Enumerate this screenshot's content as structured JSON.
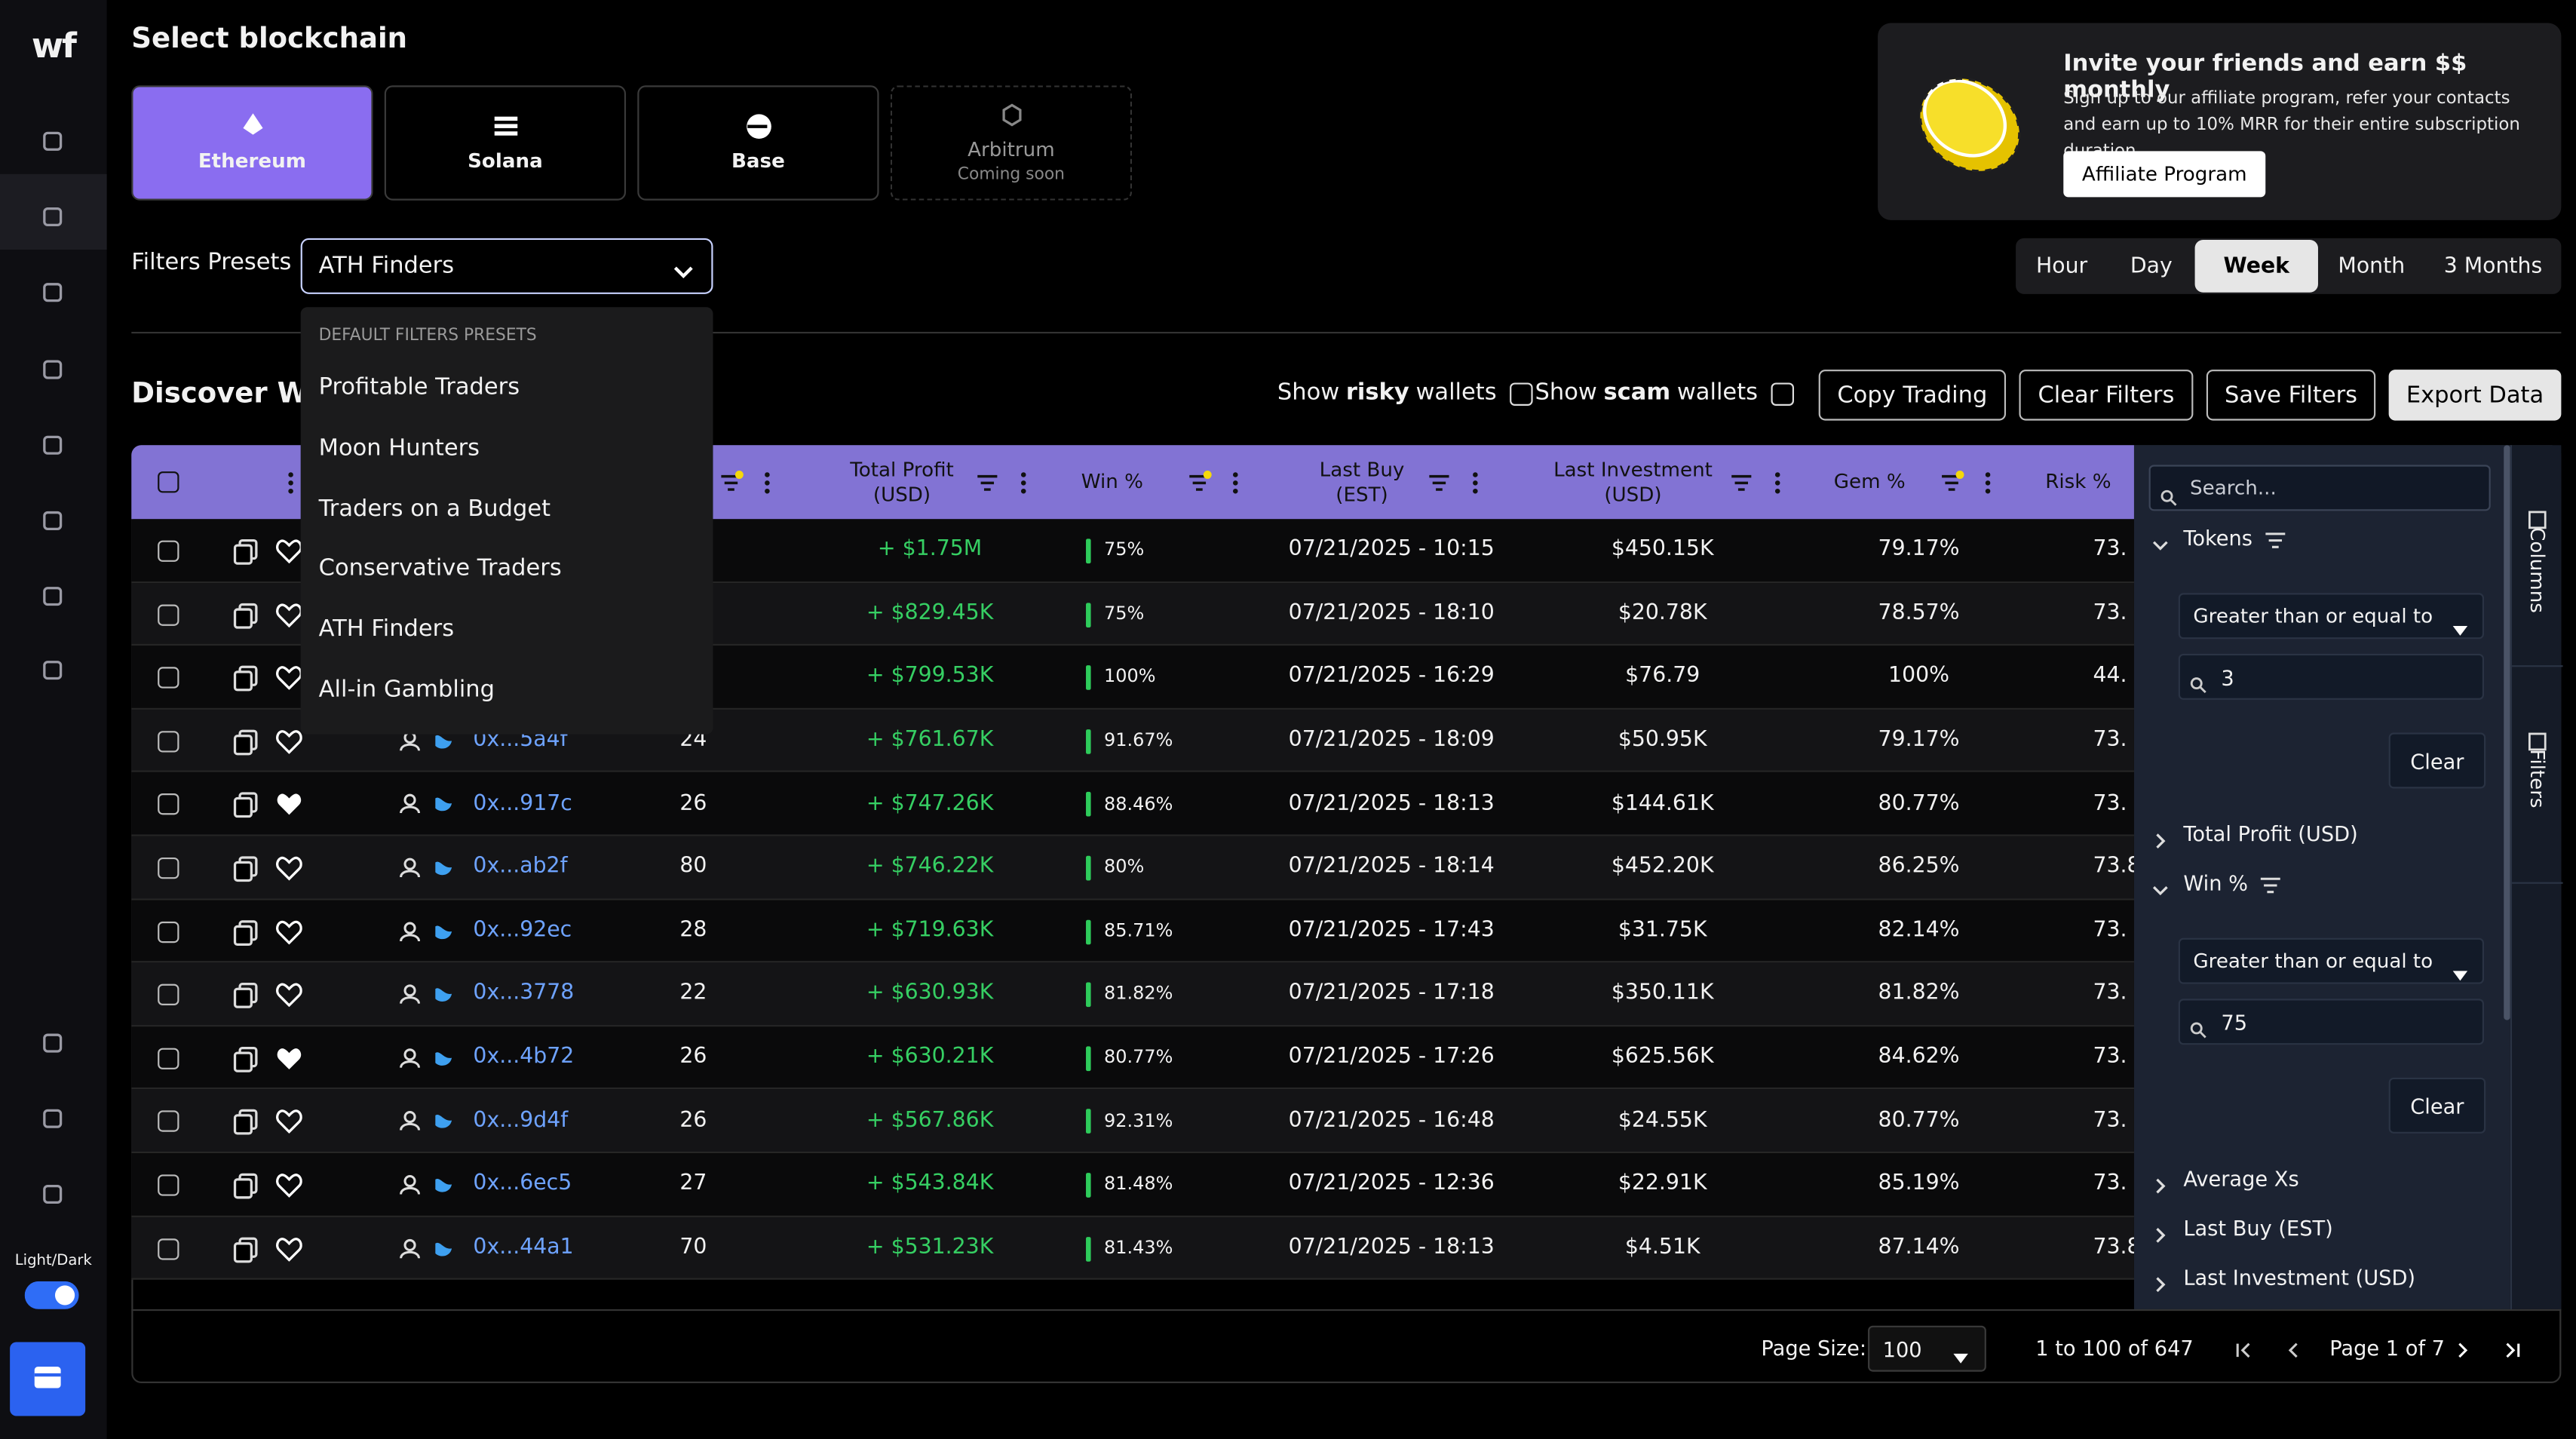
{
  "sidebar": {
    "logo": "wf",
    "theme_label": "Light/Dark"
  },
  "header": {
    "title": "Select blockchain"
  },
  "chains": [
    {
      "name": "Ethereum",
      "active": true
    },
    {
      "name": "Solana",
      "active": false
    },
    {
      "name": "Base",
      "active": false
    },
    {
      "name": "Arbitrum",
      "note": "Coming soon",
      "active": false
    }
  ],
  "affiliate": {
    "title": "Invite your friends and earn $$ monthly",
    "text": "Sign up to our affiliate program, refer your contacts and earn up to 10% MRR for their entire subscription duration.",
    "button": "Affiliate Program"
  },
  "presets": {
    "label": "Filters Presets",
    "selected": "ATH Finders",
    "group": "DEFAULT FILTERS PRESETS",
    "items": [
      "Profitable Traders",
      "Moon Hunters",
      "Traders on a Budget",
      "Conservative Traders",
      "ATH Finders",
      "All-in Gambling"
    ]
  },
  "timeframes": {
    "options": [
      "Hour",
      "Day",
      "Week",
      "Month",
      "3 Months"
    ],
    "active": 2
  },
  "discover": {
    "title": "Discover Wallets",
    "toggles": [
      {
        "prefix": "Show",
        "bold": "risky",
        "suffix": "wallets"
      },
      {
        "prefix": "Show",
        "bold": "scam",
        "suffix": "wallets"
      }
    ],
    "buttons": [
      "Copy Trading",
      "Clear Filters",
      "Save Filters",
      "Export Data"
    ]
  },
  "table": {
    "columns": [
      "Total Profit (USD)",
      "Win %",
      "Last Buy (EST)",
      "Last Investment (USD)",
      "Gem %",
      "Risk %"
    ],
    "rows": [
      {
        "wallet": null,
        "tokens": null,
        "profit": "+ $1.75M",
        "win": "75%",
        "last_buy": "07/21/2025 - 10:15",
        "investment": "$450.15K",
        "gem": "79.17%",
        "risk": "73.",
        "favorite": false
      },
      {
        "wallet": null,
        "tokens": null,
        "profit": "+ $829.45K",
        "win": "75%",
        "last_buy": "07/21/2025 - 18:10",
        "investment": "$20.78K",
        "gem": "78.57%",
        "risk": "73.",
        "favorite": false
      },
      {
        "wallet": null,
        "tokens": null,
        "profit": "+ $799.53K",
        "win": "100%",
        "last_buy": "07/21/2025 - 16:29",
        "investment": "$76.79",
        "gem": "100%",
        "risk": "44.",
        "favorite": false
      },
      {
        "wallet": "0x...5a4f",
        "tokens": "24",
        "profit": "+ $761.67K",
        "win": "91.67%",
        "last_buy": "07/21/2025 - 18:09",
        "investment": "$50.95K",
        "gem": "79.17%",
        "risk": "73.",
        "favorite": false
      },
      {
        "wallet": "0x...917c",
        "tokens": "26",
        "profit": "+ $747.26K",
        "win": "88.46%",
        "last_buy": "07/21/2025 - 18:13",
        "investment": "$144.61K",
        "gem": "80.77%",
        "risk": "73.",
        "favorite": true
      },
      {
        "wallet": "0x...ab2f",
        "tokens": "80",
        "profit": "+ $746.22K",
        "win": "80%",
        "last_buy": "07/21/2025 - 18:14",
        "investment": "$452.20K",
        "gem": "86.25%",
        "risk": "73.8",
        "favorite": false
      },
      {
        "wallet": "0x...92ec",
        "tokens": "28",
        "profit": "+ $719.63K",
        "win": "85.71%",
        "last_buy": "07/21/2025 - 17:43",
        "investment": "$31.75K",
        "gem": "82.14%",
        "risk": "73.",
        "favorite": false
      },
      {
        "wallet": "0x...3778",
        "tokens": "22",
        "profit": "+ $630.93K",
        "win": "81.82%",
        "last_buy": "07/21/2025 - 17:18",
        "investment": "$350.11K",
        "gem": "81.82%",
        "risk": "73.",
        "favorite": false
      },
      {
        "wallet": "0x...4b72",
        "tokens": "26",
        "profit": "+ $630.21K",
        "win": "80.77%",
        "last_buy": "07/21/2025 - 17:26",
        "investment": "$625.56K",
        "gem": "84.62%",
        "risk": "73.",
        "favorite": true
      },
      {
        "wallet": "0x...9d4f",
        "tokens": "26",
        "profit": "+ $567.86K",
        "win": "92.31%",
        "last_buy": "07/21/2025 - 16:48",
        "investment": "$24.55K",
        "gem": "80.77%",
        "risk": "73.",
        "favorite": false
      },
      {
        "wallet": "0x...6ec5",
        "tokens": "27",
        "profit": "+ $543.84K",
        "win": "81.48%",
        "last_buy": "07/21/2025 - 12:36",
        "investment": "$22.91K",
        "gem": "85.19%",
        "risk": "73.",
        "favorite": false
      },
      {
        "wallet": "0x...44a1",
        "tokens": "70",
        "profit": "+ $531.23K",
        "win": "81.43%",
        "last_buy": "07/21/2025 - 18:13",
        "investment": "$4.51K",
        "gem": "87.14%",
        "risk": "73.8",
        "favorite": false
      }
    ]
  },
  "filters_panel": {
    "search": "Search...",
    "tabs": [
      "Columns",
      "Filters"
    ],
    "sections": [
      {
        "name": "Tokens",
        "open": true,
        "operator": "Greater than or equal to",
        "value": "3",
        "clear": "Clear"
      },
      {
        "name": "Total Profit (USD)",
        "open": false
      },
      {
        "name": "Win %",
        "open": true,
        "operator": "Greater than or equal to",
        "value": "75",
        "clear": "Clear"
      },
      {
        "name": "Average Xs",
        "open": false
      },
      {
        "name": "Last Buy (EST)",
        "open": false
      },
      {
        "name": "Last Investment (USD)",
        "open": false
      }
    ]
  },
  "pagination": {
    "size_label": "Page Size:",
    "size": "100",
    "range": "1 to 100 of 647",
    "page": "Page 1 of 7"
  }
}
